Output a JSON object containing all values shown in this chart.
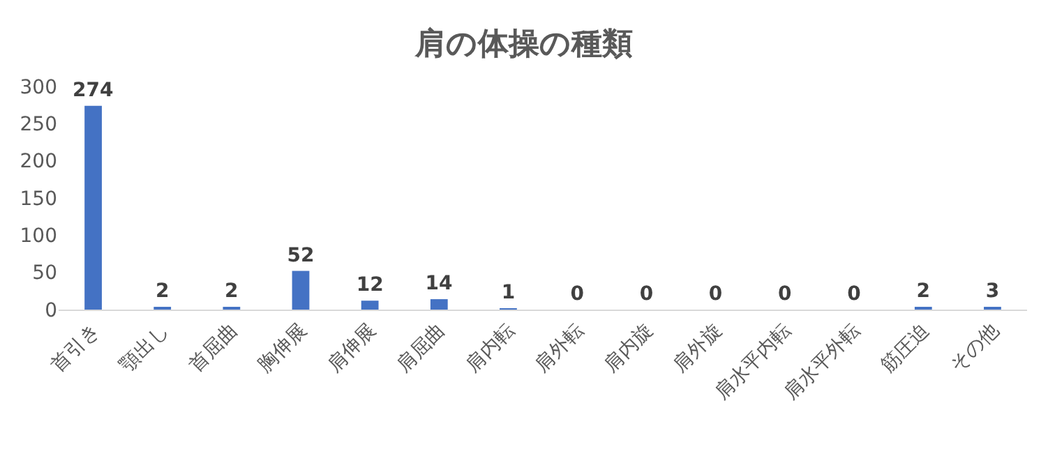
{
  "chart_data": {
    "type": "bar",
    "title": "肩の体操の種類",
    "categories": [
      "首引き",
      "顎出し",
      "首屈曲",
      "胸伸展",
      "肩伸展",
      "肩屈曲",
      "肩内転",
      "肩外転",
      "肩内旋",
      "肩外旋",
      "肩水平内転",
      "肩水平外転",
      "筋圧迫",
      "その他"
    ],
    "values": [
      274,
      2,
      2,
      52,
      12,
      14,
      1,
      0,
      0,
      0,
      0,
      0,
      2,
      3
    ],
    "color": "#4472c4",
    "ylim": [
      0,
      300
    ],
    "yticks": [
      0,
      50,
      100,
      150,
      200,
      250,
      300
    ],
    "data_labels": true
  }
}
